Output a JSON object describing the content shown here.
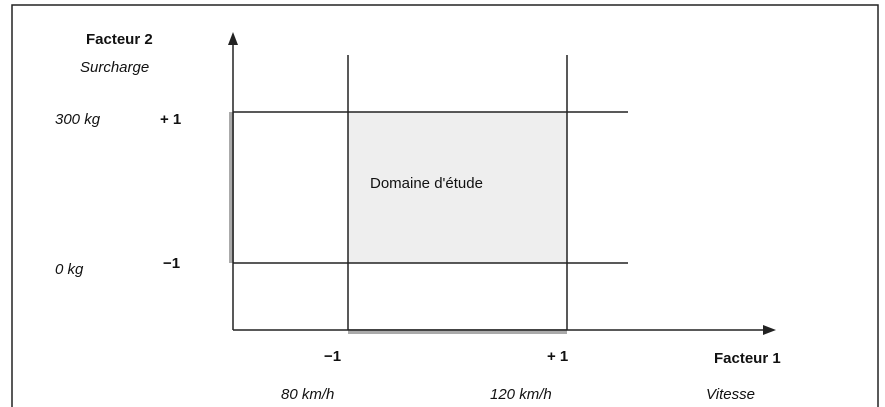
{
  "factor2": {
    "title": "Facteur 2",
    "name": "Surcharge",
    "high_value": "300 kg",
    "high_level": "+ 1",
    "low_value": "0 kg",
    "low_level": "−1"
  },
  "factor1": {
    "title": "Facteur 1",
    "name": "Vitesse",
    "low_level": "−1",
    "high_level": "+ 1",
    "low_value": "80 km/h",
    "high_value": "120 km/h"
  },
  "domain_label": "Domaine d'étude"
}
